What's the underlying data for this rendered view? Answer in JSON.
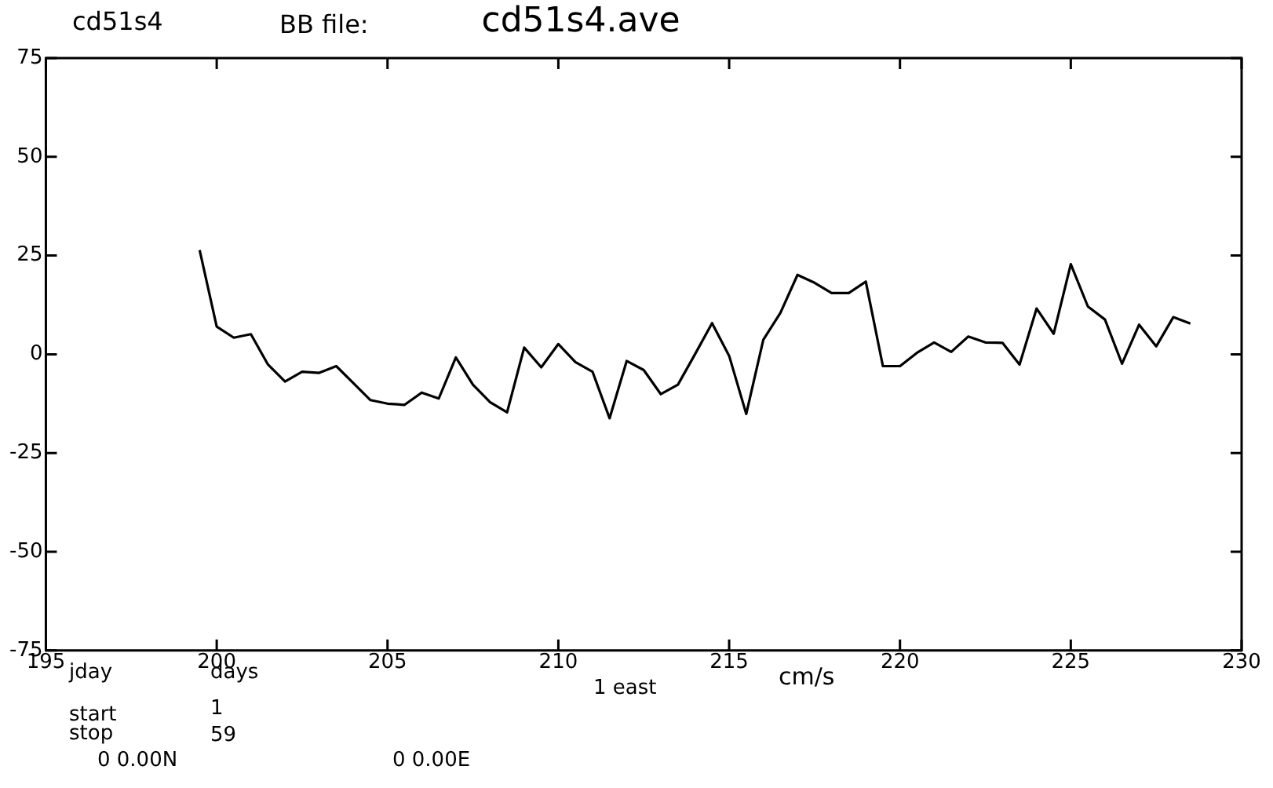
{
  "chart_data": {
    "type": "line",
    "title": "cd51s4.ave",
    "annotations": [
      "cd51s4",
      "BB file:",
      "jday",
      "days",
      "1 east",
      "cm/s",
      "start",
      "1",
      "stop",
      "59",
      "0 0.00N",
      "0 0.00E"
    ],
    "x": [
      199.5,
      200,
      200.5,
      201,
      201.5,
      202,
      202.5,
      203,
      203.5,
      204,
      204.5,
      205,
      205.5,
      206,
      206.5,
      207,
      207.5,
      208,
      208.5,
      209,
      209.5,
      210,
      210.5,
      211,
      211.5,
      212,
      212.5,
      213,
      213.5,
      214,
      214.5,
      215,
      215.5,
      216,
      216.5,
      217,
      217.5,
      218,
      218.5,
      219,
      219.5,
      220,
      220.5,
      221,
      221.5,
      222,
      222.5,
      223,
      223.5,
      224,
      224.5,
      225,
      225.5,
      226,
      226.5,
      227,
      227.5,
      228,
      228.5
    ],
    "series": [
      {
        "color": "#000000",
        "values": [
          26.4,
          7,
          4.2,
          5.1,
          -2.6,
          -6.9,
          -4.4,
          -4.7,
          -3,
          -7.3,
          -11.6,
          -12.5,
          -12.8,
          -9.7,
          -11.2,
          -0.8,
          -7.7,
          -12.1,
          -14.7,
          1.7,
          -3.3,
          2.6,
          -2,
          -4.4,
          -16.2,
          -1.7,
          -4,
          -10.1,
          -7.7,
          0,
          7.9,
          -0.4,
          -15.1,
          3.7,
          10.5,
          20.1,
          18.1,
          15.5,
          15.5,
          18.4,
          -3,
          -3,
          0.4,
          3,
          0.6,
          4.5,
          3,
          2.9,
          -2.6,
          11.6,
          5.2,
          22.8,
          12.1,
          8.8,
          -2.4,
          7.5,
          2,
          9.4,
          7.8
        ]
      }
    ],
    "xlim": [
      195,
      230
    ],
    "xticks": [
      195,
      200,
      205,
      210,
      215,
      220,
      225,
      230
    ],
    "ylim": [
      -75,
      75
    ],
    "yticks": [
      -75,
      -50,
      -25,
      0,
      25,
      50,
      75
    ],
    "legend": false,
    "grid": false,
    "marker": "none",
    "line_style": "solid"
  }
}
